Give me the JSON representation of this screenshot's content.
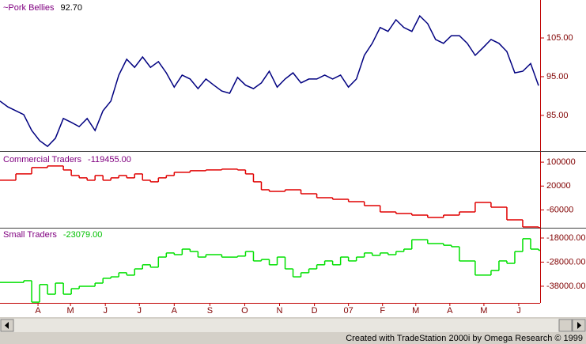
{
  "chart_data": [
    {
      "type": "line",
      "title": "~Pork Bellies",
      "last_label": "92.70",
      "title_color": "#800080",
      "label_color": "#000000",
      "xlim": [
        0,
        68.2
      ],
      "ylim": [
        76,
        114.8
      ],
      "yticks": [
        {
          "value": 85,
          "label": "85.00"
        },
        {
          "value": 95,
          "label": "95.00"
        },
        {
          "value": 105,
          "label": "105.00"
        }
      ],
      "series": [
        {
          "name": "Pork Bellies",
          "color": "#000080",
          "x": [
            0,
            1,
            2,
            3,
            4,
            5,
            6,
            7,
            8,
            9,
            10,
            11,
            12,
            13,
            14,
            15,
            16,
            17,
            18,
            19,
            20,
            21,
            22,
            23,
            24,
            25,
            26,
            27,
            28,
            29,
            30,
            31,
            32,
            33,
            34,
            35,
            36,
            37,
            38,
            39,
            40,
            41,
            42,
            43,
            44,
            45,
            46,
            47,
            48,
            49,
            50,
            51,
            52,
            53,
            54,
            55,
            56,
            57,
            58,
            59,
            60,
            61,
            62,
            63,
            64,
            65,
            66,
            67,
            68
          ],
          "values": [
            88.7,
            87.2,
            86.2,
            85.2,
            81.1,
            78.5,
            77.0,
            79.1,
            84.2,
            83.2,
            82.1,
            84.2,
            81.1,
            86.2,
            88.7,
            95.4,
            99.5,
            97.4,
            100.1,
            97.4,
            98.9,
            96.0,
            92.3,
            95.4,
            94.4,
            91.9,
            94.4,
            92.8,
            91.3,
            90.7,
            94.8,
            92.8,
            91.9,
            93.4,
            96.4,
            92.3,
            94.4,
            96.0,
            93.4,
            94.4,
            94.4,
            95.4,
            94.4,
            95.4,
            92.3,
            94.4,
            100.5,
            103.6,
            107.7,
            106.7,
            109.7,
            107.7,
            106.7,
            110.7,
            108.7,
            104.6,
            103.6,
            105.6,
            105.6,
            103.6,
            100.5,
            102.5,
            104.6,
            103.6,
            101.5,
            96.0,
            96.4,
            98.4,
            92.7
          ]
        }
      ]
    },
    {
      "type": "step",
      "title": "Commercial Traders",
      "last_label": "-119455.00",
      "title_color": "#800080",
      "label_color": "#800080",
      "xlim": [
        0,
        68.2
      ],
      "ylim": [
        -125000,
        132000
      ],
      "yticks": [
        {
          "value": 100000,
          "label": "100000"
        },
        {
          "value": 20000,
          "label": "20000"
        },
        {
          "value": -60000,
          "label": "-60000"
        }
      ],
      "series": [
        {
          "name": "Commercial Traders",
          "color": "#e00000",
          "x": [
            0,
            2,
            4,
            6,
            8,
            9,
            10,
            11,
            12,
            13,
            14,
            15,
            16,
            17,
            18,
            19,
            20,
            21,
            22,
            24,
            26,
            28,
            30,
            31,
            32,
            33,
            34,
            36,
            38,
            40,
            42,
            44,
            46,
            48,
            50,
            52,
            54,
            56,
            58,
            60,
            62,
            64,
            66,
            68
          ],
          "values": [
            39500,
            60700,
            81900,
            87200,
            73900,
            55300,
            47500,
            39500,
            55300,
            39500,
            47500,
            55300,
            47500,
            60700,
            39500,
            34200,
            47500,
            55300,
            66000,
            71300,
            73900,
            76600,
            73900,
            60700,
            34200,
            7600,
            2300,
            7600,
            -5800,
            -19000,
            -24300,
            -32300,
            -45400,
            -66600,
            -72000,
            -77300,
            -85200,
            -77300,
            -66600,
            -34900,
            -50800,
            -93200,
            -117000,
            -119455
          ]
        }
      ]
    },
    {
      "type": "step",
      "title": "Small Traders",
      "last_label": "-23079.00",
      "title_color": "#800080",
      "label_color": "#00c000",
      "xlim": [
        0,
        68.2
      ],
      "ylim": [
        -44900,
        -14400
      ],
      "yticks": [
        {
          "value": -18000,
          "label": "-18000.00"
        },
        {
          "value": -28000,
          "label": "-28000.00"
        },
        {
          "value": -38000,
          "label": "-38000.00"
        }
      ],
      "xticks": [
        {
          "value": 4.8,
          "label": "A"
        },
        {
          "value": 8.9,
          "label": "M"
        },
        {
          "value": 13.3,
          "label": "J"
        },
        {
          "value": 17.6,
          "label": "J"
        },
        {
          "value": 22.0,
          "label": "A"
        },
        {
          "value": 26.5,
          "label": "S"
        },
        {
          "value": 30.9,
          "label": "O"
        },
        {
          "value": 35.3,
          "label": "N"
        },
        {
          "value": 39.7,
          "label": "D"
        },
        {
          "value": 44.0,
          "label": "07"
        },
        {
          "value": 48.3,
          "label": "F"
        },
        {
          "value": 52.5,
          "label": "M"
        },
        {
          "value": 56.8,
          "label": "A"
        },
        {
          "value": 61.1,
          "label": "M"
        },
        {
          "value": 65.5,
          "label": "J"
        }
      ],
      "series": [
        {
          "name": "Small Traders",
          "color": "#00e000",
          "x": [
            0,
            3,
            4,
            5,
            6,
            7,
            8,
            9,
            10,
            12,
            13,
            14,
            15,
            16,
            17,
            18,
            19,
            20,
            21,
            22,
            23,
            24,
            25,
            26,
            28,
            30,
            31,
            32,
            33,
            34,
            35,
            36,
            37,
            38,
            39,
            40,
            41,
            42,
            43,
            44,
            45,
            46,
            47,
            48,
            49,
            50,
            51,
            52,
            54,
            56,
            57,
            58,
            60,
            62,
            63,
            64,
            65,
            66,
            67,
            68
          ],
          "values": [
            -36400,
            -35700,
            -44600,
            -37300,
            -41300,
            -36700,
            -41300,
            -39000,
            -38000,
            -36700,
            -34700,
            -34100,
            -32400,
            -33400,
            -30800,
            -29100,
            -30100,
            -25900,
            -24200,
            -24900,
            -22600,
            -23600,
            -25900,
            -24900,
            -25900,
            -25500,
            -23600,
            -27500,
            -26900,
            -29100,
            -25900,
            -30800,
            -34100,
            -32400,
            -30800,
            -29100,
            -27500,
            -29100,
            -25900,
            -27500,
            -25900,
            -24200,
            -25200,
            -24200,
            -24900,
            -23600,
            -22600,
            -18700,
            -20300,
            -21000,
            -21600,
            -27500,
            -33400,
            -31500,
            -27500,
            -28500,
            -23600,
            -18300,
            -22600,
            -23079
          ]
        }
      ]
    }
  ],
  "footer": "Created with TradeStation 2000i by Omega Research © 1999"
}
